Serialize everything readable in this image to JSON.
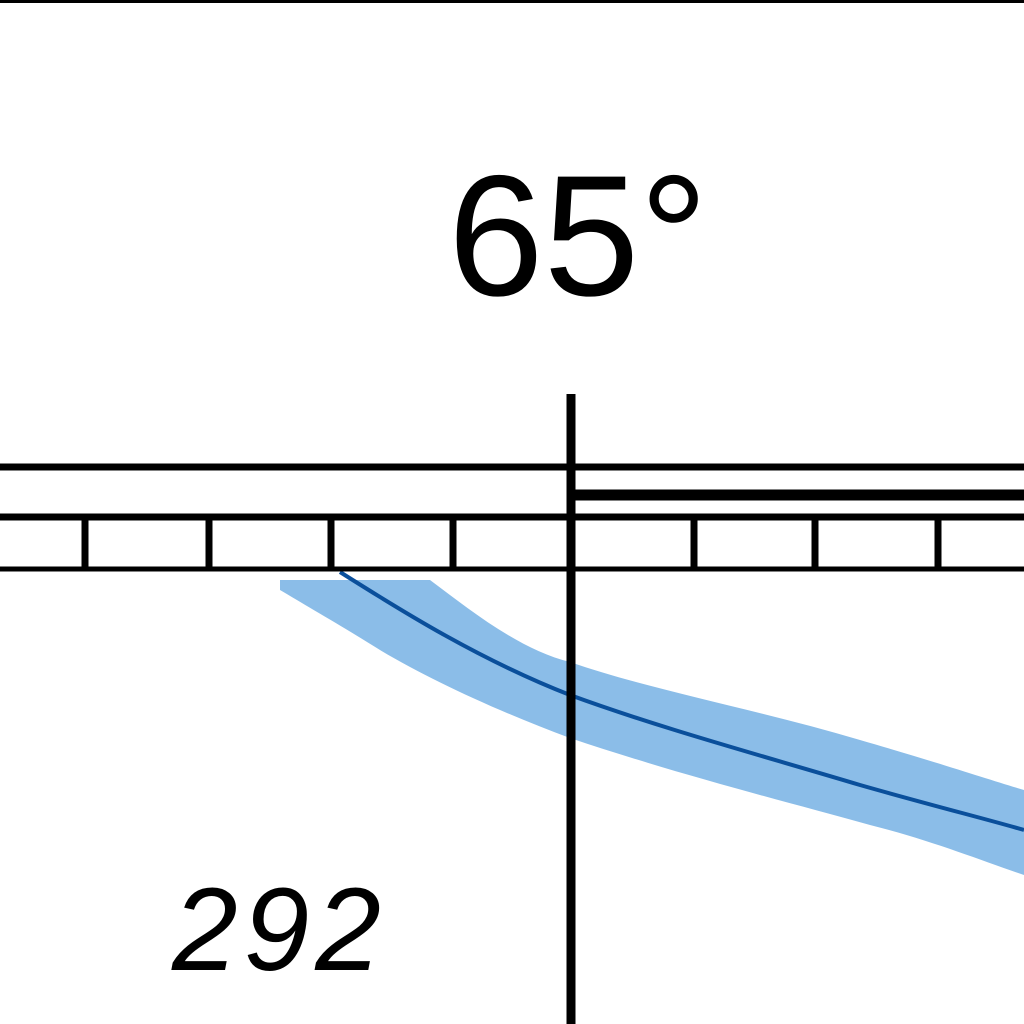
{
  "map": {
    "meridian_label": "65°",
    "feature_label": "292",
    "colors": {
      "ink": "#000000",
      "band_fill": "#8bbde8",
      "track_line": "#0a4f9b",
      "background": "#ffffff"
    }
  }
}
